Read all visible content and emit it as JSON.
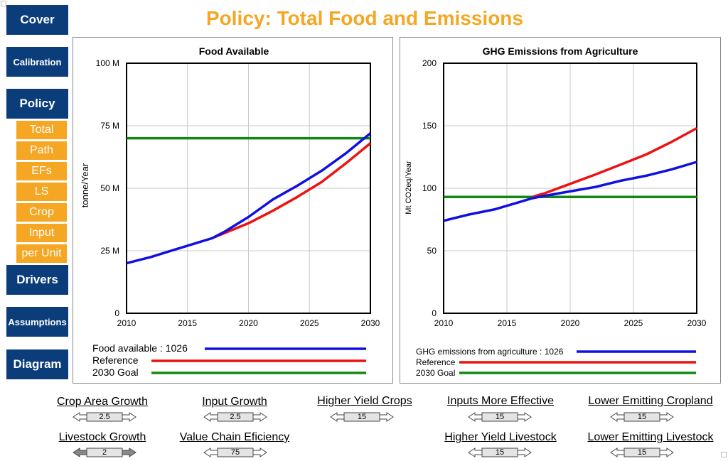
{
  "title": "Policy: Total Food and Emissions",
  "nav": {
    "cover": "Cover",
    "calibration": "Calibration",
    "policy": "Policy",
    "drivers": "Drivers",
    "assumptions": "Assumptions",
    "diagram": "Diagram",
    "policy_sub": [
      "Total",
      "Path",
      "EFs",
      "LS",
      "Crop",
      "Input",
      "per Unit"
    ]
  },
  "colors": {
    "nav": "#0b3d7a",
    "subnav": "#f5a623",
    "title": "#f5a623",
    "series_model": "#1010e0",
    "series_reference": "#ee1111",
    "series_goal": "#118811"
  },
  "chart_data": [
    {
      "type": "line",
      "title": "Food Available",
      "ylabel": "tonne/Year",
      "xlabel": "",
      "xlim": [
        2010,
        2030
      ],
      "ylim": [
        0,
        100
      ],
      "x_ticks": [
        "2010",
        "2015",
        "2020",
        "2025",
        "2030"
      ],
      "y_ticks": [
        "0",
        "25 M",
        "50 M",
        "75 M",
        "100 M"
      ],
      "grid": true,
      "legend_position": "bottom",
      "series": [
        {
          "name": "Food available : 1026",
          "color": "#1010e0",
          "x": [
            2010,
            2012,
            2014,
            2016,
            2017,
            2018,
            2020,
            2022,
            2024,
            2026,
            2028,
            2030
          ],
          "y": [
            20,
            22.5,
            25.5,
            28.5,
            30,
            32.5,
            38.5,
            45.5,
            51,
            57,
            64,
            72
          ]
        },
        {
          "name": "Reference",
          "color": "#ee1111",
          "x": [
            2017,
            2018,
            2020,
            2022,
            2024,
            2026,
            2028,
            2030
          ],
          "y": [
            30,
            32,
            36,
            41,
            46.5,
            52.5,
            60,
            68
          ]
        },
        {
          "name": "2030 Goal",
          "color": "#118811",
          "x": [
            2010,
            2030
          ],
          "y": [
            70,
            70
          ]
        }
      ]
    },
    {
      "type": "line",
      "title": "GHG Emissions from Agriculture",
      "ylabel": "Mt CO2eq/Year",
      "xlabel": "",
      "xlim": [
        2010,
        2030
      ],
      "ylim": [
        0,
        200
      ],
      "x_ticks": [
        "2010",
        "2015",
        "2020",
        "2025",
        "2030"
      ],
      "y_ticks": [
        "0",
        "50",
        "100",
        "150",
        "200"
      ],
      "grid": true,
      "legend_position": "bottom",
      "series": [
        {
          "name": "GHG emissions from agriculture : 1026",
          "color": "#1010e0",
          "x": [
            2010,
            2012,
            2014,
            2016,
            2017,
            2018,
            2020,
            2022,
            2024,
            2026,
            2028,
            2030
          ],
          "y": [
            74,
            79,
            83,
            89,
            92,
            94,
            97.5,
            101,
            106,
            110,
            115,
            121
          ]
        },
        {
          "name": "Reference",
          "color": "#ee1111",
          "x": [
            2017,
            2018,
            2020,
            2022,
            2024,
            2026,
            2028,
            2030
          ],
          "y": [
            93,
            96,
            103.5,
            111,
            119,
            127,
            137,
            148
          ]
        },
        {
          "name": "2030 Goal",
          "color": "#118811",
          "x": [
            2010,
            2030
          ],
          "y": [
            93,
            93
          ]
        }
      ]
    }
  ],
  "sliders": [
    {
      "label": "Crop Area Growth",
      "value": "2.5",
      "fill": 0.0
    },
    {
      "label": "Input Growth",
      "value": "2.5",
      "fill": 0.0
    },
    {
      "label": "Higher Yield Crops",
      "value": "15",
      "fill": 0.0
    },
    {
      "label": "Inputs More Effective",
      "value": "15",
      "fill": 0.0
    },
    {
      "label": "Lower Emitting Cropland",
      "value": "15",
      "fill": 0.0
    },
    {
      "label": "Livestock Growth",
      "value": "2",
      "fill": 0.3
    },
    {
      "label": "Value Chain Eficiency",
      "value": "75",
      "fill": 0.0
    },
    {
      "label": "Higher Yield Livestock",
      "value": "15",
      "fill": 0.0
    },
    {
      "label": "Lower Emitting Livestock",
      "value": "15",
      "fill": 0.0
    }
  ]
}
